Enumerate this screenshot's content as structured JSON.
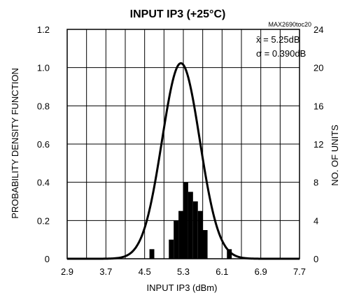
{
  "chart_data": {
    "type": "bar",
    "title": "INPUT IP3 (+25°C)",
    "code": "MAX2690toc20",
    "xlabel": "INPUT IP3 (dBm)",
    "ylabel_left": "PROBABILITY DENSITY FUNCTION",
    "ylabel_right": "NO. OF UNITS",
    "xlim": [
      2.9,
      7.7
    ],
    "ylim_left": [
      0,
      1.2
    ],
    "ylim_right": [
      0,
      24
    ],
    "x_ticks": [
      "2.9",
      "3.7",
      "4.5",
      "5.3",
      "6.1",
      "6.9",
      "7.7"
    ],
    "y_ticks_left": [
      "0",
      "0.2",
      "0.4",
      "0.6",
      "0.8",
      "1.0",
      "1.2"
    ],
    "y_ticks_right": [
      "0",
      "4",
      "8",
      "12",
      "16",
      "20",
      "24"
    ],
    "grid": true,
    "stats": {
      "mean_label": "x̄ = 5.25dB",
      "sigma_label": "σ = 0.390dB"
    },
    "pdf_curve": {
      "mean": 5.25,
      "sigma": 0.39
    },
    "histogram": {
      "bin_width": 0.1,
      "bins": [
        {
          "x0": 4.6,
          "units": 1
        },
        {
          "x0": 5.0,
          "units": 2
        },
        {
          "x0": 5.1,
          "units": 4
        },
        {
          "x0": 5.2,
          "units": 5
        },
        {
          "x0": 5.3,
          "units": 8
        },
        {
          "x0": 5.4,
          "units": 7
        },
        {
          "x0": 5.5,
          "units": 6
        },
        {
          "x0": 5.6,
          "units": 5
        },
        {
          "x0": 5.7,
          "units": 3
        },
        {
          "x0": 6.2,
          "units": 1
        }
      ]
    }
  }
}
